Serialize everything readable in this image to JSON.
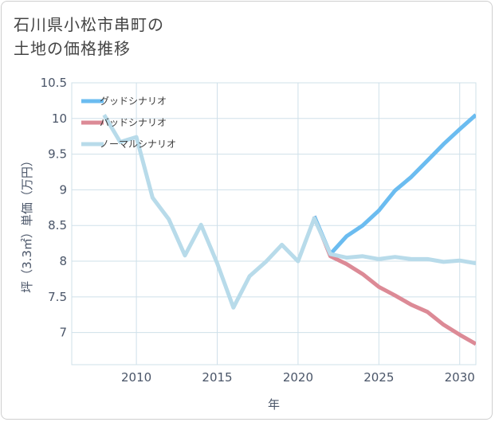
{
  "title": {
    "line1": "石川県小松市串町の",
    "line2": "土地の価格推移"
  },
  "colors": {
    "good": "#6bbcf0",
    "bad": "#dc8a96",
    "normal": "#b8dbea",
    "grid": "#cfe0ea",
    "plot_bg": "#ffffff"
  },
  "chart_data": {
    "type": "line",
    "title": "石川県小松市串町の土地の価格推移",
    "xlabel": "年",
    "ylabel": "坪（3.3㎡）単価（万円）",
    "xlim": [
      2006,
      2031
    ],
    "ylim": [
      6.55,
      10.5
    ],
    "xticks": [
      2010,
      2015,
      2020,
      2025,
      2030
    ],
    "yticks": [
      7,
      7.5,
      8,
      8.5,
      9,
      9.5,
      10,
      10.5
    ],
    "legend_position": "top-left",
    "series": [
      {
        "name": "グッドシナリオ",
        "color_key": "good",
        "x": [
          2021,
          2022,
          2023,
          2024,
          2025,
          2026,
          2027,
          2028,
          2029,
          2030,
          2031
        ],
        "y": [
          8.63,
          8.1,
          8.35,
          8.5,
          8.71,
          8.99,
          9.18,
          9.41,
          9.64,
          9.85,
          10.05
        ]
      },
      {
        "name": "バッドシナリオ",
        "color_key": "bad",
        "x": [
          2021,
          2022,
          2023,
          2024,
          2025,
          2026,
          2027,
          2028,
          2029,
          2030,
          2031
        ],
        "y": [
          8.63,
          8.07,
          7.96,
          7.82,
          7.64,
          7.52,
          7.39,
          7.29,
          7.11,
          6.97,
          6.84
        ]
      },
      {
        "name": "ノーマルシナリオ",
        "color_key": "normal",
        "x": [
          2008,
          2009,
          2010,
          2011,
          2012,
          2013,
          2014,
          2015,
          2016,
          2017,
          2018,
          2019,
          2020,
          2021,
          2022,
          2023,
          2024,
          2025,
          2026,
          2027,
          2028,
          2029,
          2030,
          2031
        ],
        "y": [
          10.05,
          9.67,
          9.74,
          8.89,
          8.59,
          8.08,
          8.51,
          7.97,
          7.35,
          7.79,
          7.99,
          8.23,
          8.0,
          8.6,
          8.1,
          8.05,
          8.07,
          8.03,
          8.06,
          8.03,
          8.03,
          7.99,
          8.01,
          7.97
        ]
      }
    ]
  }
}
